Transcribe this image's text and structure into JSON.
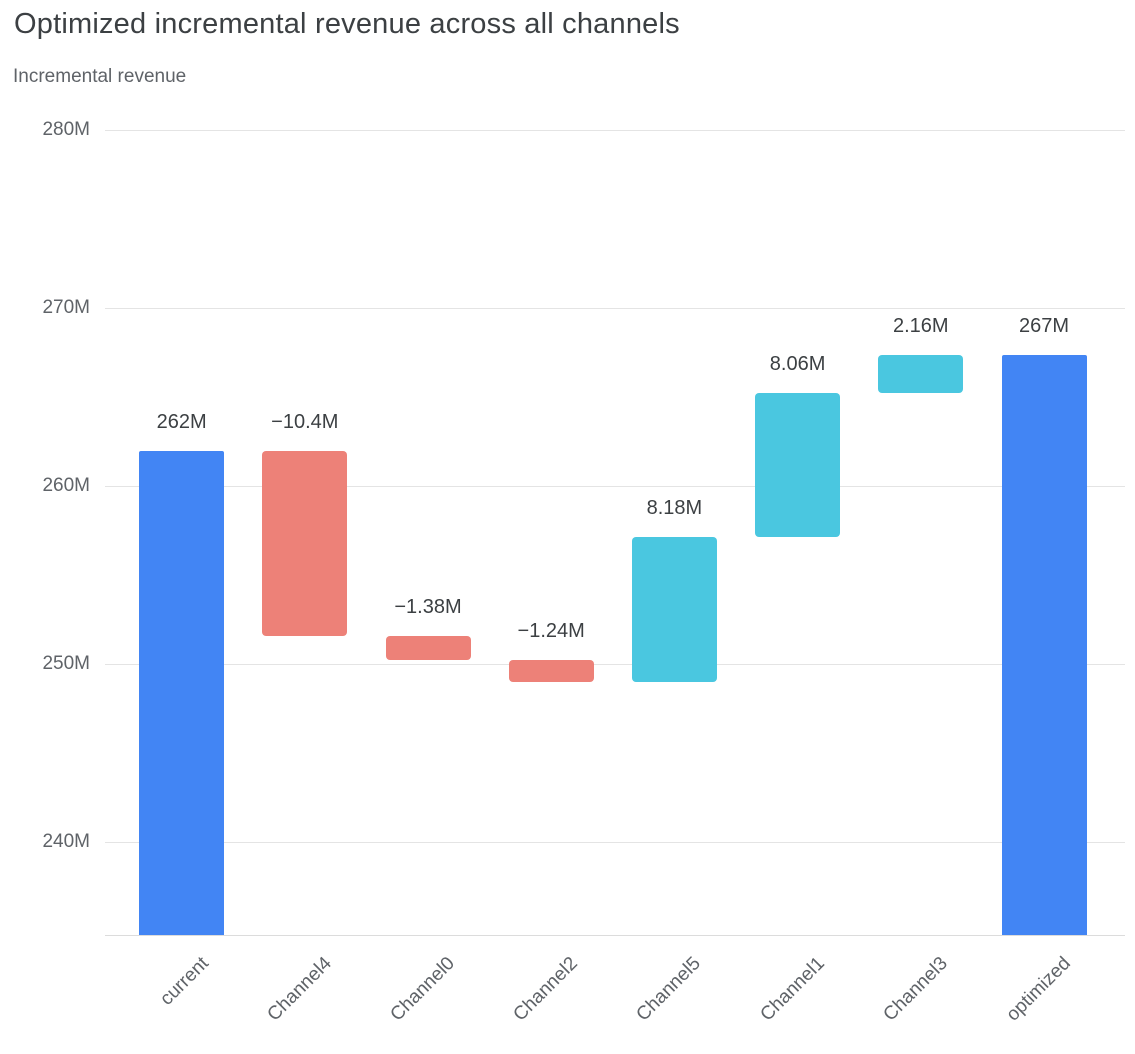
{
  "page": {
    "title": "Optimized incremental revenue across all channels",
    "subtitle": "Incremental revenue"
  },
  "colors": {
    "title": "#3c4043",
    "subtitle": "#5f6368",
    "axis_text": "#5f6368",
    "grid": "#e4e4e4",
    "bar_label": "#3c4043"
  },
  "chart_data": {
    "type": "bar",
    "subtype": "waterfall",
    "title": "Optimized incremental revenue across all channels",
    "subtitle": "Incremental revenue",
    "categories": [
      "current",
      "Channel4",
      "Channel0",
      "Channel2",
      "Channel5",
      "Channel1",
      "Channel3",
      "optimized"
    ],
    "measures": [
      "total",
      "relative",
      "relative",
      "relative",
      "relative",
      "relative",
      "relative",
      "total"
    ],
    "values": [
      262,
      -10.4,
      -1.38,
      -1.24,
      8.18,
      8.06,
      2.16,
      267.38
    ],
    "bar_labels": [
      "262M",
      "−10.4M",
      "−1.38M",
      "−1.24M",
      "8.18M",
      "8.06M",
      "2.16M",
      "267M"
    ],
    "xlabel": "",
    "ylabel": "Incremental revenue",
    "yticks": [
      240,
      250,
      260,
      270,
      280
    ],
    "ytick_labels": [
      "240M",
      "250M",
      "260M",
      "270M",
      "280M"
    ],
    "ylim": [
      234.8,
      280
    ],
    "grid": true,
    "legend": false,
    "colors": {
      "total": "#4285f4",
      "increase": "#4ac7e0",
      "decrease": "#ed8178"
    }
  }
}
